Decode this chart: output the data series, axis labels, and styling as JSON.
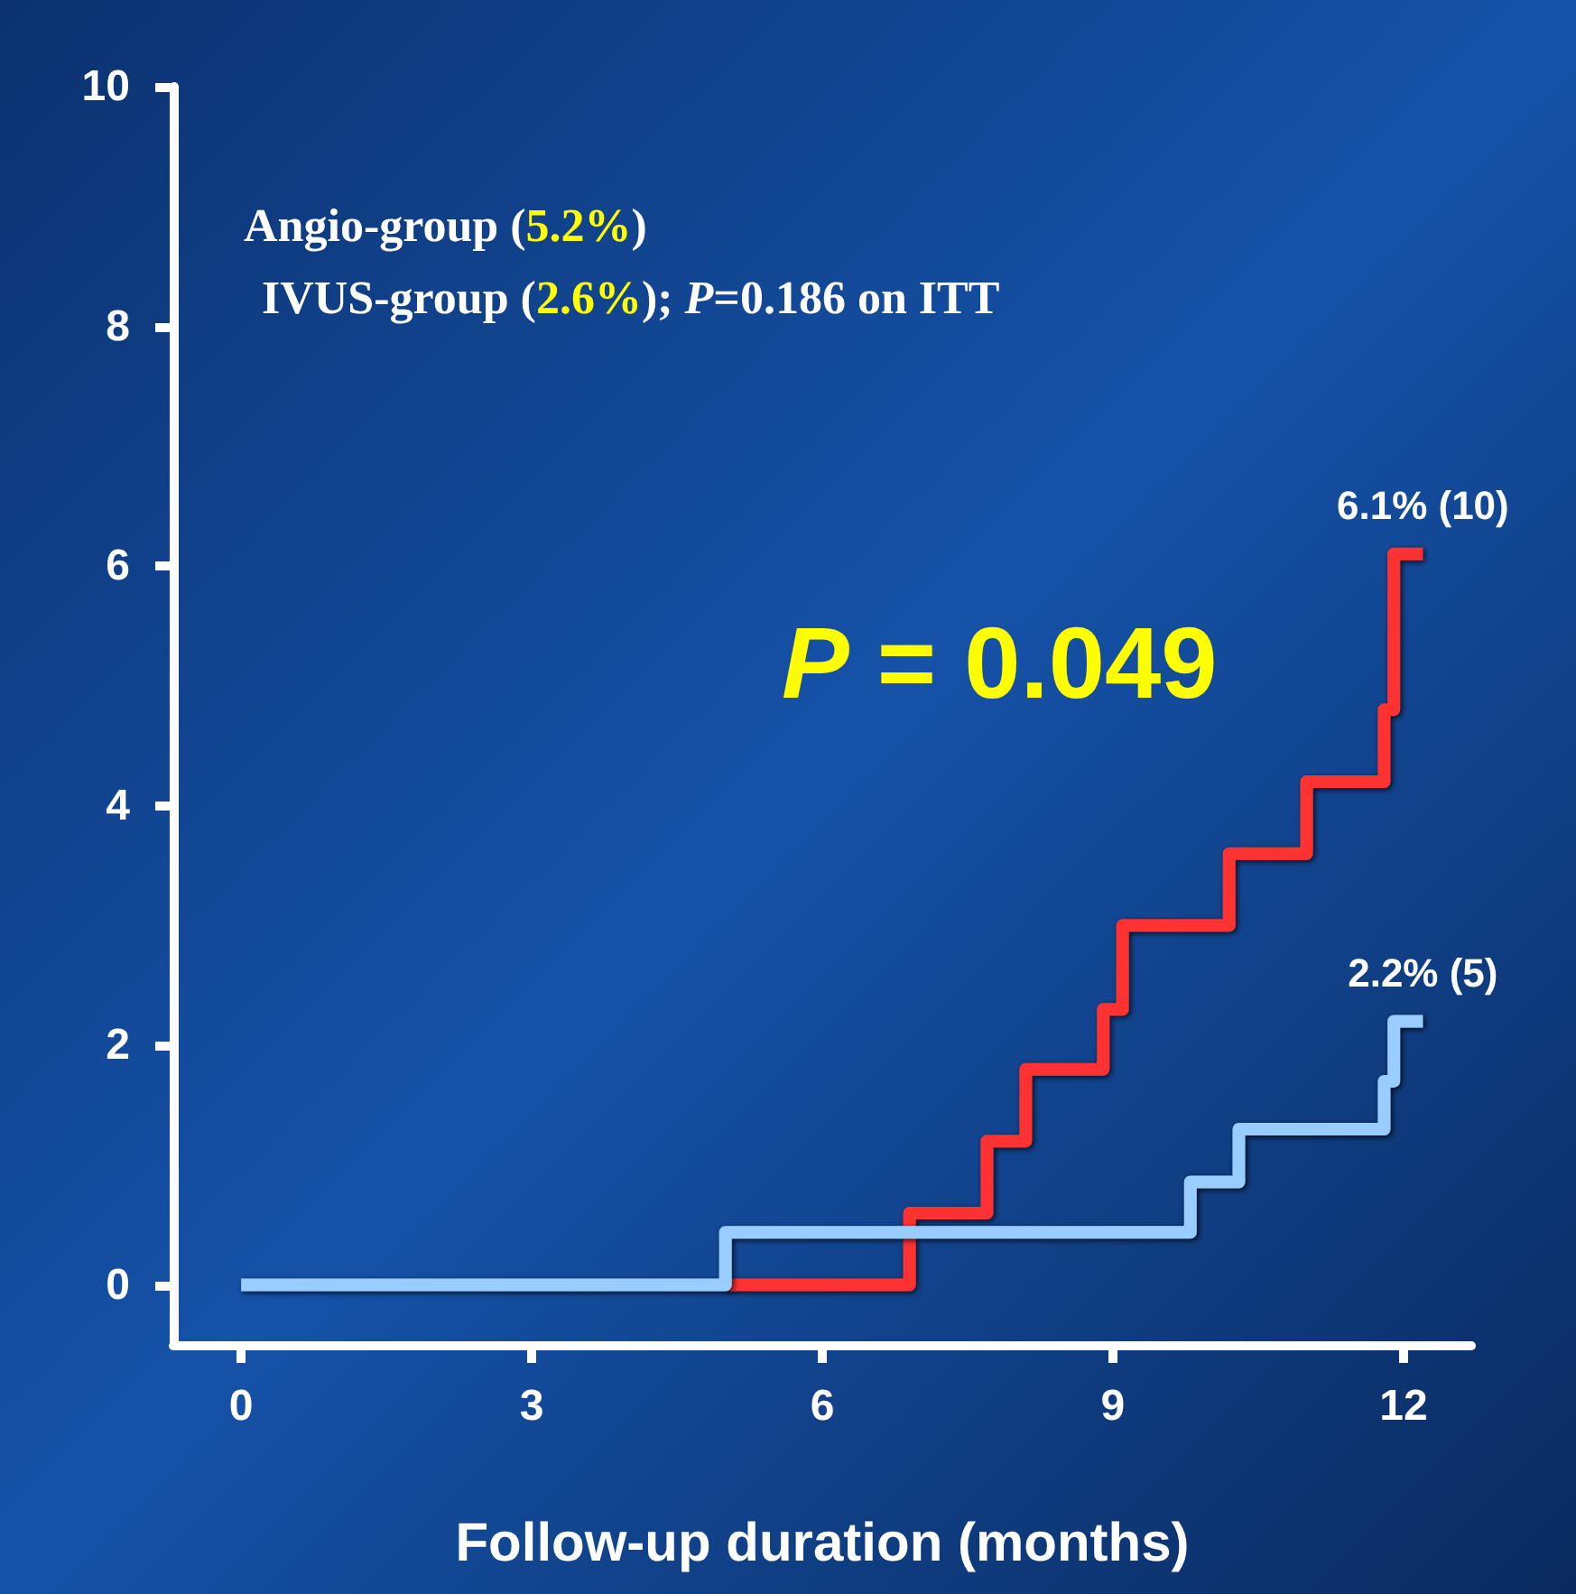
{
  "chart_data": {
    "type": "step",
    "xlabel": "Follow-up duration (months)",
    "xlim": [
      -0.7,
      12.7
    ],
    "xticks": [
      0,
      3,
      6,
      9,
      12
    ],
    "ylim": [
      -0.5,
      10
    ],
    "yticks": [
      0,
      2,
      4,
      6,
      8,
      10
    ],
    "line_style": "solid",
    "marker": "none",
    "series": [
      {
        "color": "#ff3333",
        "x": [
          5.0,
          6.9,
          7.7,
          8.1,
          8.9,
          9.1,
          10.2,
          11.0,
          11.8,
          11.9,
          12.2
        ],
        "values": [
          0,
          0.6,
          1.2,
          1.8,
          2.3,
          3.0,
          3.6,
          4.2,
          4.8,
          6.1,
          6.1
        ]
      },
      {
        "color": "#99ccff",
        "x": [
          0,
          5.0,
          9.8,
          10.3,
          11.8,
          11.9,
          12.2
        ],
        "values": [
          0,
          0.44,
          0.86,
          1.3,
          1.7,
          2.2,
          2.2
        ]
      }
    ],
    "annotations": [
      "Angio-group (5.2%)",
      "IVUS-group (2.6%); P=0.186 on ITT",
      "P = 0.049",
      {
        "text": "6.1% (10)",
        "x": 12.2,
        "y": 6.1
      },
      {
        "text": "2.2% (5)",
        "x": 12.2,
        "y": 2.2
      }
    ]
  }
}
